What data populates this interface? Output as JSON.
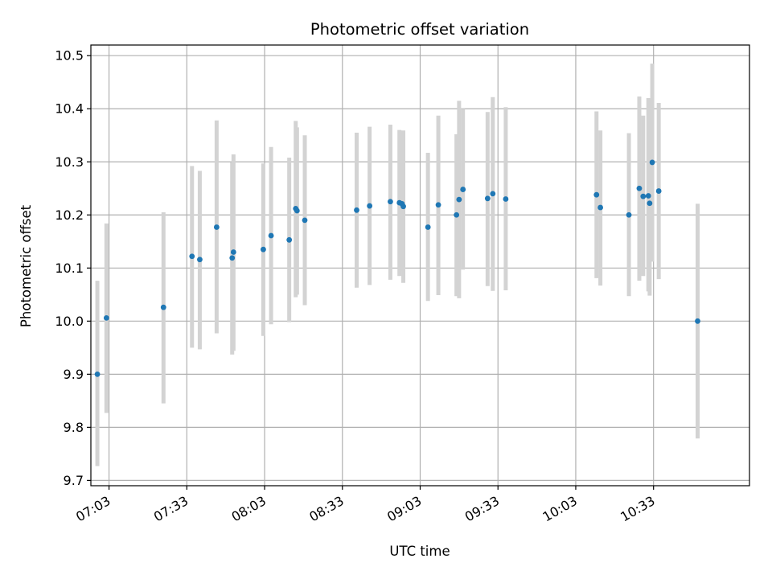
{
  "chart_data": {
    "type": "scatter",
    "title": "Photometric offset variation",
    "xlabel": "UTC time",
    "ylabel": "Photometric offset",
    "x_is_time": true,
    "xlim": [
      "06:56",
      "11:10"
    ],
    "ylim": [
      9.69,
      10.52
    ],
    "x_ticks": [
      "07:03",
      "07:33",
      "08:03",
      "08:33",
      "09:03",
      "09:33",
      "10:03",
      "10:33"
    ],
    "y_ticks": [
      9.7,
      9.8,
      9.9,
      10.0,
      10.1,
      10.2,
      10.3,
      10.4,
      10.5
    ],
    "y_tick_labels": [
      "9.7",
      "9.8",
      "9.9",
      "10.0",
      "10.1",
      "10.2",
      "10.3",
      "10.4",
      "10.5"
    ],
    "grid": true,
    "colors": {
      "points": "#1f77b4",
      "errorbars": "#d3d3d3",
      "grid": "#b0b0b0"
    },
    "series": [
      {
        "points": [
          {
            "x": "06:58:30",
            "y": 9.9,
            "lo": 9.727,
            "hi": 10.076
          },
          {
            "x": "07:02:00",
            "y": 10.006,
            "lo": 9.827,
            "hi": 10.184
          },
          {
            "x": "07:24:00",
            "y": 10.026,
            "lo": 9.845,
            "hi": 10.205
          },
          {
            "x": "07:35:00",
            "y": 10.122,
            "lo": 9.95,
            "hi": 10.292
          },
          {
            "x": "07:38:00",
            "y": 10.116,
            "lo": 9.947,
            "hi": 10.283
          },
          {
            "x": "07:44:30",
            "y": 10.177,
            "lo": 9.977,
            "hi": 10.378
          },
          {
            "x": "07:50:30",
            "y": 10.119,
            "lo": 9.937,
            "hi": 10.299
          },
          {
            "x": "07:51:00",
            "y": 10.13,
            "lo": 9.944,
            "hi": 10.314
          },
          {
            "x": "08:02:30",
            "y": 10.135,
            "lo": 9.972,
            "hi": 10.297
          },
          {
            "x": "08:05:30",
            "y": 10.161,
            "lo": 9.994,
            "hi": 10.328
          },
          {
            "x": "08:12:30",
            "y": 10.153,
            "lo": 9.998,
            "hi": 10.308
          },
          {
            "x": "08:15:00",
            "y": 10.212,
            "lo": 10.045,
            "hi": 10.377
          },
          {
            "x": "08:15:30",
            "y": 10.208,
            "lo": 10.05,
            "hi": 10.365
          },
          {
            "x": "08:18:30",
            "y": 10.19,
            "lo": 10.03,
            "hi": 10.35
          },
          {
            "x": "08:38:30",
            "y": 10.209,
            "lo": 10.063,
            "hi": 10.355
          },
          {
            "x": "08:43:30",
            "y": 10.217,
            "lo": 10.068,
            "hi": 10.366
          },
          {
            "x": "08:51:30",
            "y": 10.225,
            "lo": 10.078,
            "hi": 10.37
          },
          {
            "x": "08:55:00",
            "y": 10.223,
            "lo": 10.085,
            "hi": 10.36
          },
          {
            "x": "08:56:00",
            "y": 10.221,
            "lo": 10.095,
            "hi": 10.358
          },
          {
            "x": "08:56:30",
            "y": 10.216,
            "lo": 10.072,
            "hi": 10.359
          },
          {
            "x": "09:06:00",
            "y": 10.177,
            "lo": 10.038,
            "hi": 10.317
          },
          {
            "x": "09:10:00",
            "y": 10.219,
            "lo": 10.049,
            "hi": 10.387
          },
          {
            "x": "09:17:00",
            "y": 10.2,
            "lo": 10.047,
            "hi": 10.352
          },
          {
            "x": "09:18:00",
            "y": 10.229,
            "lo": 10.043,
            "hi": 10.415
          },
          {
            "x": "09:19:30",
            "y": 10.248,
            "lo": 10.097,
            "hi": 10.4
          },
          {
            "x": "09:29:00",
            "y": 10.231,
            "lo": 10.066,
            "hi": 10.394
          },
          {
            "x": "09:31:00",
            "y": 10.24,
            "lo": 10.057,
            "hi": 10.422
          },
          {
            "x": "09:36:00",
            "y": 10.23,
            "lo": 10.058,
            "hi": 10.403
          },
          {
            "x": "10:11:00",
            "y": 10.238,
            "lo": 10.081,
            "hi": 10.395
          },
          {
            "x": "10:12:30",
            "y": 10.214,
            "lo": 10.067,
            "hi": 10.359
          },
          {
            "x": "10:23:30",
            "y": 10.2,
            "lo": 10.047,
            "hi": 10.354
          },
          {
            "x": "10:27:30",
            "y": 10.25,
            "lo": 10.076,
            "hi": 10.423
          },
          {
            "x": "10:29:00",
            "y": 10.235,
            "lo": 10.085,
            "hi": 10.387
          },
          {
            "x": "10:31:00",
            "y": 10.236,
            "lo": 10.056,
            "hi": 10.42
          },
          {
            "x": "10:31:30",
            "y": 10.222,
            "lo": 10.048,
            "hi": 10.419
          },
          {
            "x": "10:32:30",
            "y": 10.299,
            "lo": 10.112,
            "hi": 10.485
          },
          {
            "x": "10:35:00",
            "y": 10.245,
            "lo": 10.079,
            "hi": 10.411
          },
          {
            "x": "10:50:00",
            "y": 10.0,
            "lo": 9.779,
            "hi": 10.221
          }
        ]
      }
    ]
  }
}
